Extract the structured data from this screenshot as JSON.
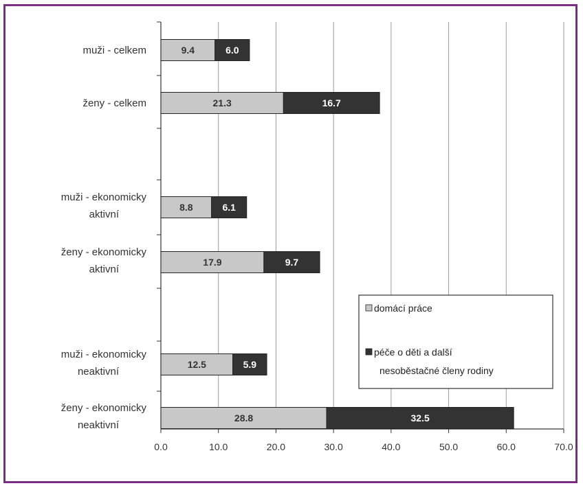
{
  "chart_data": {
    "type": "bar",
    "orientation": "horizontal",
    "stacked": true,
    "categories": [
      [
        "muži - celkem"
      ],
      [
        "ženy - celkem"
      ],
      [
        "muži - ekonomicky",
        "aktivní"
      ],
      [
        "ženy - ekonomicky",
        "aktivní"
      ],
      [
        "muži - ekonomicky",
        "neaktivní"
      ],
      [
        "ženy - ekonomicky",
        "neaktivní"
      ]
    ],
    "series": [
      {
        "name": "domácí práce",
        "color": "#c8c8c8",
        "text_color": "#333333",
        "values": [
          9.4,
          21.3,
          8.8,
          17.9,
          12.5,
          28.8
        ]
      },
      {
        "name": "péče o děti a další nesoběstačné členy rodiny",
        "color": "#333333",
        "text_color": "#ffffff",
        "values": [
          6.0,
          16.7,
          6.1,
          9.7,
          5.9,
          32.5
        ]
      }
    ],
    "xticks": [
      "0.0",
      "10.0",
      "20.0",
      "30.0",
      "40.0",
      "50.0",
      "60.0",
      "70.0"
    ],
    "xlim": [
      0,
      70
    ],
    "title": "",
    "xlabel": "",
    "ylabel": "",
    "grid": true,
    "legend": {
      "position": "bottom-right",
      "lines": [
        [
          "domácí práce"
        ],
        [
          "péče o děti a další",
          "nesoběstačné členy rodiny"
        ]
      ]
    },
    "frame_color": "#7b2d86"
  }
}
